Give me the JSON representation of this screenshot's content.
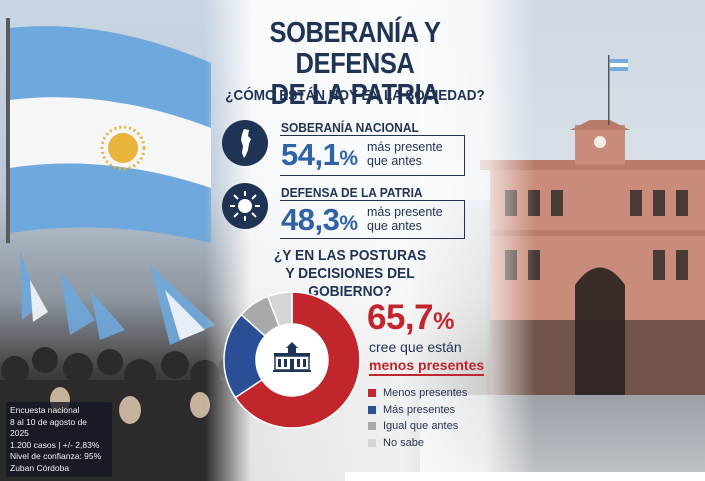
{
  "title_line1": "SOBERANÍA Y DEFENSA",
  "title_line2": "DE LA PATRIA",
  "subtitle": "¿CÓMO ESTÁN HOY EN LA SOCIEDAD?",
  "stats": [
    {
      "label": "SOBERANÍA NACIONAL",
      "value": "54,1",
      "unit": "%",
      "desc": "más presente que antes",
      "icon": "argentina-map-icon"
    },
    {
      "label": "DEFENSA DE LA PATRIA",
      "value": "48,3",
      "unit": "%",
      "desc": "más presente que antes",
      "icon": "sun-of-may-icon"
    }
  ],
  "question2_line1": "¿Y EN LAS POSTURAS",
  "question2_line2": "Y DECISIONES DEL GOBIERNO?",
  "highlight": {
    "value": "65,7",
    "unit": "%",
    "desc_line1": "cree que están",
    "desc_line2": "menos presentes"
  },
  "chart_data": {
    "type": "pie",
    "donut": true,
    "categories": [
      "Menos presentes",
      "Más presentes",
      "Igual que antes",
      "No sabe"
    ],
    "values": [
      65.7,
      20.9,
      7.6,
      5.8
    ],
    "colors": [
      "#c0262c",
      "#2a4f96",
      "#a7a9ac",
      "#d4d5d7"
    ],
    "center_icon": "casa-rosada-icon",
    "legend_position": "bottom-right"
  },
  "footnote": {
    "line1": "Encuesta nacional",
    "line2": "8 al 10 de agosto de 2025",
    "line3": "1.200 casos | +/- 2,83%",
    "line4": "Nivel de confianza: 95%",
    "line5": "Zuban Córdoba"
  },
  "colors": {
    "navy": "#1f3354",
    "blue": "#2f62a6",
    "red": "#c0262c"
  }
}
